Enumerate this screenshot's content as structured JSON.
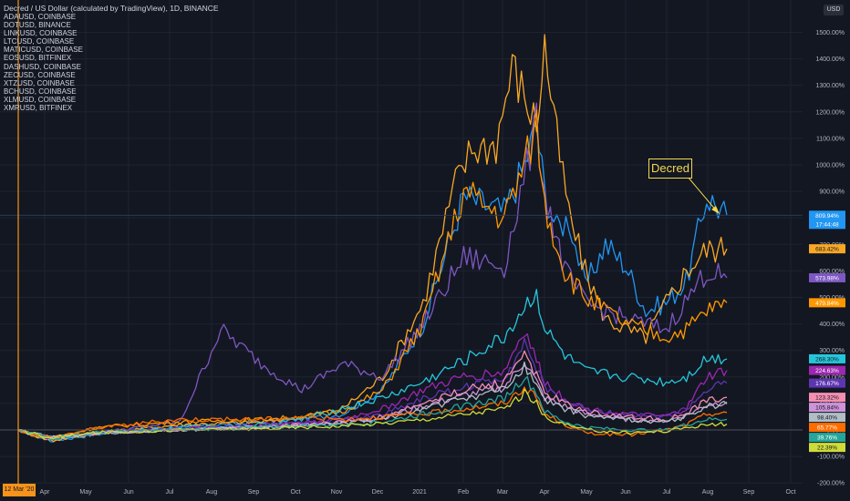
{
  "chart_data": {
    "type": "line",
    "title": "Decred / US Dollar (calculated by TradingView), 1D, BINANCE",
    "unit_badge": "USD",
    "y_unit": "%",
    "ylim": [
      -200,
      1600
    ],
    "grid": true,
    "x_ticks": [
      "Apr",
      "May",
      "Jun",
      "Jul",
      "Aug",
      "Sep",
      "Oct",
      "Nov",
      "Dec",
      "2021",
      "Feb",
      "Mar",
      "Apr",
      "May",
      "Jun",
      "Jul",
      "Aug",
      "Sep",
      "Oct"
    ],
    "y_ticks": [
      "1500.00%",
      "1400.00%",
      "1300.00%",
      "1200.00%",
      "1100.00%",
      "1000.00%",
      "900.00%",
      "800.00%",
      "700.00%",
      "600.00%",
      "500.00%",
      "400.00%",
      "300.00%",
      "200.00%",
      "100.00%",
      "0.00%",
      "-100.00%",
      "-200.00%"
    ],
    "y_tick_values": [
      1500,
      1400,
      1300,
      1200,
      1100,
      1000,
      900,
      800,
      700,
      600,
      500,
      400,
      300,
      200,
      100,
      0,
      -100,
      -200
    ],
    "crosshair_date": "12 Mar '20",
    "price_tag_time": "17:44:48",
    "annotation": "Decred",
    "legend_entries": [
      "ADAUSD, COINBASE",
      "DOTUSD, BINANCE",
      "LINKUSD, COINBASE",
      "LTCUSD, COINBASE",
      "MATICUSD, COINBASE",
      "EOSUSD, BITFINEX",
      "DASHUSD, COINBASE",
      "ZECUSD, COINBASE",
      "XTZUSD, COINBASE",
      "BCHUSD, COINBASE",
      "XLMUSD, COINBASE",
      "XMRUSD, BITFINEX"
    ],
    "last_value_labels": [
      {
        "text": "809.94%",
        "value": 809.94,
        "color": "#2196f3"
      },
      {
        "text": "683.42%",
        "value": 683.42,
        "color": "#f9a825"
      },
      {
        "text": "573.98%",
        "value": 573.98,
        "color": "#7e57c2"
      },
      {
        "text": "479.84%",
        "value": 479.84,
        "color": "#ff9800"
      },
      {
        "text": "268.30%",
        "value": 268.3,
        "color": "#26c6da"
      },
      {
        "text": "224.63%",
        "value": 224.63,
        "color": "#9c27b0"
      },
      {
        "text": "176.67%",
        "value": 176.67,
        "color": "#5e35b1"
      },
      {
        "text": "123.32%",
        "value": 123.32,
        "color": "#f48fb1"
      },
      {
        "text": "105.84%",
        "value": 105.84,
        "color": "#ce93d8"
      },
      {
        "text": "98.40%",
        "value": 98.4,
        "color": "#b0bec5"
      },
      {
        "text": "65.77%",
        "value": 65.77,
        "color": "#ff6d00"
      },
      {
        "text": "39.76%",
        "value": 39.76,
        "color": "#26a69a"
      },
      {
        "text": "22.39%",
        "value": 22.39,
        "color": "#cddc39"
      }
    ],
    "series": [
      {
        "color": "#2196f3",
        "x": [
          0,
          8,
          20,
          40,
          60,
          70,
          80,
          90,
          100,
          110,
          120,
          125,
          128,
          130,
          133,
          136,
          140,
          145,
          150,
          155,
          160,
          165,
          170,
          175
        ],
        "values": [
          0,
          -40,
          -15,
          10,
          30,
          40,
          60,
          150,
          400,
          880,
          820,
          1000,
          1150,
          900,
          760,
          800,
          540,
          700,
          620,
          450,
          480,
          560,
          880,
          810
        ]
      },
      {
        "color": "#f9a825",
        "x": [
          0,
          8,
          20,
          40,
          60,
          70,
          80,
          90,
          100,
          108,
          112,
          118,
          122,
          128,
          130,
          133,
          136,
          140,
          145,
          150,
          155,
          160,
          165,
          170,
          175
        ],
        "values": [
          0,
          -40,
          -10,
          20,
          30,
          50,
          80,
          200,
          480,
          930,
          1060,
          1080,
          1370,
          1150,
          1450,
          1100,
          820,
          600,
          420,
          380,
          350,
          480,
          600,
          680,
          683
        ]
      },
      {
        "color": "#7e57c2",
        "x": [
          0,
          8,
          20,
          40,
          50,
          60,
          70,
          80,
          90,
          100,
          110,
          120,
          128,
          130,
          135,
          140,
          150,
          160,
          170,
          175
        ],
        "values": [
          0,
          -30,
          -10,
          30,
          380,
          250,
          150,
          250,
          200,
          400,
          650,
          620,
          1150,
          900,
          600,
          480,
          420,
          380,
          600,
          574
        ]
      },
      {
        "color": "#ff9800",
        "x": [
          0,
          8,
          20,
          40,
          60,
          70,
          80,
          90,
          100,
          110,
          120,
          125,
          128,
          130,
          135,
          140,
          150,
          160,
          165,
          170,
          175
        ],
        "values": [
          0,
          -30,
          10,
          30,
          40,
          50,
          70,
          150,
          400,
          900,
          800,
          1000,
          1150,
          850,
          600,
          500,
          400,
          350,
          380,
          450,
          480
        ]
      },
      {
        "color": "#26c6da",
        "x": [
          0,
          8,
          20,
          40,
          60,
          70,
          80,
          90,
          100,
          110,
          120,
          125,
          128,
          130,
          135,
          140,
          150,
          160,
          165,
          170,
          175
        ],
        "values": [
          0,
          -30,
          -10,
          10,
          20,
          40,
          80,
          120,
          180,
          260,
          350,
          460,
          520,
          380,
          280,
          220,
          200,
          180,
          200,
          270,
          268
        ]
      },
      {
        "color": "#9c27b0",
        "x": [
          0,
          8,
          20,
          40,
          60,
          70,
          80,
          90,
          100,
          110,
          120,
          125,
          128,
          130,
          135,
          140,
          150,
          160,
          165,
          170,
          175
        ],
        "values": [
          0,
          -30,
          -10,
          5,
          20,
          30,
          40,
          80,
          150,
          200,
          220,
          380,
          260,
          180,
          120,
          80,
          60,
          50,
          80,
          200,
          225
        ]
      },
      {
        "color": "#5e35b1",
        "x": [
          0,
          8,
          20,
          40,
          60,
          70,
          80,
          90,
          100,
          110,
          120,
          125,
          128,
          130,
          135,
          140,
          150,
          160,
          165,
          170,
          175
        ],
        "values": [
          0,
          -30,
          -10,
          5,
          15,
          25,
          35,
          60,
          120,
          160,
          200,
          330,
          230,
          160,
          110,
          80,
          60,
          50,
          80,
          150,
          177
        ]
      },
      {
        "color": "#f48fb1",
        "x": [
          0,
          8,
          20,
          40,
          60,
          70,
          80,
          90,
          100,
          110,
          120,
          125,
          128,
          130,
          135,
          140,
          150,
          160,
          165,
          170,
          175
        ],
        "values": [
          0,
          -30,
          -10,
          0,
          10,
          20,
          30,
          50,
          100,
          150,
          180,
          300,
          200,
          140,
          100,
          70,
          50,
          40,
          60,
          110,
          123
        ]
      },
      {
        "color": "#ce93d8",
        "x": [
          0,
          8,
          20,
          40,
          60,
          70,
          80,
          90,
          100,
          110,
          120,
          125,
          128,
          130,
          135,
          140,
          150,
          160,
          165,
          170,
          175
        ],
        "values": [
          0,
          -30,
          -10,
          0,
          10,
          20,
          30,
          45,
          90,
          130,
          160,
          260,
          180,
          120,
          90,
          60,
          40,
          35,
          55,
          95,
          106
        ]
      },
      {
        "color": "#b0bec5",
        "x": [
          0,
          8,
          20,
          40,
          60,
          70,
          80,
          90,
          100,
          110,
          120,
          125,
          128,
          130,
          135,
          140,
          150,
          160,
          165,
          170,
          175
        ],
        "values": [
          0,
          -30,
          -10,
          0,
          10,
          15,
          25,
          40,
          80,
          120,
          150,
          240,
          170,
          110,
          80,
          55,
          40,
          30,
          50,
          90,
          98
        ]
      },
      {
        "color": "#ff6d00",
        "x": [
          0,
          8,
          20,
          40,
          60,
          70,
          80,
          90,
          100,
          110,
          120,
          125,
          128,
          130,
          135,
          140,
          150,
          160,
          165,
          170,
          175
        ],
        "values": [
          0,
          -30,
          10,
          40,
          40,
          50,
          40,
          50,
          60,
          80,
          100,
          160,
          120,
          60,
          20,
          -10,
          -20,
          0,
          20,
          60,
          66
        ]
      },
      {
        "color": "#26a69a",
        "x": [
          0,
          8,
          20,
          40,
          60,
          70,
          80,
          90,
          100,
          110,
          120,
          125,
          128,
          130,
          135,
          140,
          150,
          160,
          165,
          170,
          175
        ],
        "values": [
          0,
          -30,
          -10,
          0,
          10,
          15,
          20,
          30,
          60,
          90,
          120,
          200,
          140,
          70,
          30,
          10,
          0,
          0,
          20,
          40,
          40
        ]
      },
      {
        "color": "#cddc39",
        "x": [
          0,
          8,
          20,
          40,
          60,
          70,
          80,
          90,
          100,
          110,
          120,
          125,
          128,
          130,
          135,
          140,
          150,
          160,
          165,
          170,
          175
        ],
        "values": [
          0,
          -30,
          -10,
          0,
          5,
          10,
          15,
          25,
          40,
          60,
          80,
          140,
          100,
          50,
          20,
          0,
          -10,
          -5,
          10,
          20,
          22
        ]
      }
    ]
  }
}
